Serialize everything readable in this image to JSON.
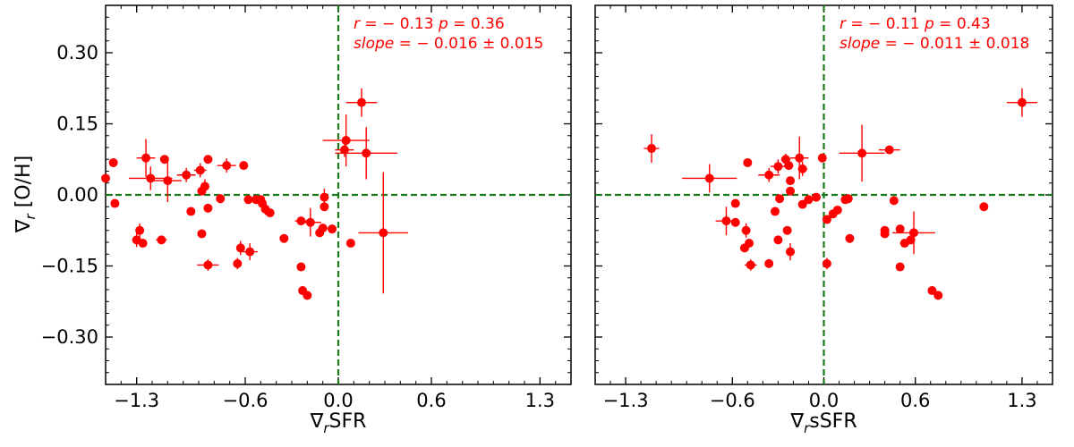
{
  "figure": {
    "ylabel_symbol": "∇",
    "ylabel_sub": "r",
    "ylabel_text": " [O/H]"
  },
  "colors": {
    "marker": "#ff0000",
    "reference_line": "#1a7a1a",
    "axis": "#000000"
  },
  "chart_data": [
    {
      "type": "scatter",
      "xlabel_symbol": "∇",
      "xlabel_sub": "r",
      "xlabel_text": "SFR",
      "xlim": [
        -1.5,
        1.5
      ],
      "ylim": [
        -0.4,
        0.4
      ],
      "xticks": [
        -1.3,
        -0.6,
        0.0,
        0.6,
        1.3
      ],
      "xtick_labels": [
        "−1.3",
        "−0.6",
        "0.0",
        "0.6",
        "1.3"
      ],
      "yticks": [
        0.3,
        0.15,
        0.0,
        -0.15,
        -0.3
      ],
      "ytick_labels": [
        "0.30",
        "0.15",
        "0.00",
        "−0.15",
        "−0.30"
      ],
      "annotation": {
        "r_label": "r",
        "r_value": " = − 0.13",
        "p_label": "p",
        "p_value": " = 0.36",
        "slope_label": "slope",
        "slope_value": " = − 0.016 ± 0.015"
      },
      "points": [
        {
          "x": -1.5,
          "y": 0.035,
          "xerr": 0,
          "yerr": 0
        },
        {
          "x": -1.45,
          "y": 0.068,
          "xerr": 0,
          "yerr": 0
        },
        {
          "x": -1.44,
          "y": -0.018,
          "xerr": 0,
          "yerr": 0
        },
        {
          "x": -1.24,
          "y": 0.078,
          "xerr": 0.06,
          "yerr": 0.04
        },
        {
          "x": -1.21,
          "y": 0.035,
          "xerr": 0.14,
          "yerr": 0.025
        },
        {
          "x": -1.1,
          "y": 0.03,
          "xerr": 0.09,
          "yerr": 0.045
        },
        {
          "x": -1.12,
          "y": 0.075,
          "xerr": 0,
          "yerr": 0
        },
        {
          "x": -0.98,
          "y": 0.042,
          "xerr": 0.06,
          "yerr": 0.015
        },
        {
          "x": -0.89,
          "y": 0.052,
          "xerr": 0.04,
          "yerr": 0.015
        },
        {
          "x": -0.84,
          "y": 0.075,
          "xerr": 0.025,
          "yerr": 0.008
        },
        {
          "x": -0.72,
          "y": 0.062,
          "xerr": 0.06,
          "yerr": 0.015
        },
        {
          "x": -0.61,
          "y": 0.062,
          "xerr": 0,
          "yerr": 0
        },
        {
          "x": -0.86,
          "y": 0.018,
          "xerr": 0.02,
          "yerr": 0.015
        },
        {
          "x": -0.88,
          "y": 0.008,
          "xerr": 0,
          "yerr": 0
        },
        {
          "x": -0.76,
          "y": -0.008,
          "xerr": 0,
          "yerr": 0
        },
        {
          "x": -0.84,
          "y": -0.028,
          "xerr": 0,
          "yerr": 0
        },
        {
          "x": -0.95,
          "y": -0.035,
          "xerr": 0,
          "yerr": 0
        },
        {
          "x": -0.58,
          "y": -0.01,
          "xerr": 0,
          "yerr": 0
        },
        {
          "x": -0.53,
          "y": -0.01,
          "xerr": 0.02,
          "yerr": 0
        },
        {
          "x": -0.5,
          "y": -0.01,
          "xerr": 0,
          "yerr": 0
        },
        {
          "x": -0.49,
          "y": -0.018,
          "xerr": 0,
          "yerr": 0
        },
        {
          "x": -0.47,
          "y": -0.03,
          "xerr": 0.02,
          "yerr": 0.012
        },
        {
          "x": -0.44,
          "y": -0.038,
          "xerr": 0,
          "yerr": 0
        },
        {
          "x": -0.35,
          "y": -0.092,
          "xerr": 0,
          "yerr": 0
        },
        {
          "x": -0.88,
          "y": -0.082,
          "xerr": 0,
          "yerr": 0
        },
        {
          "x": -1.3,
          "y": -0.095,
          "xerr": 0.03,
          "yerr": 0.015
        },
        {
          "x": -1.28,
          "y": -0.075,
          "xerr": 0,
          "yerr": 0.015
        },
        {
          "x": -1.26,
          "y": -0.102,
          "xerr": 0,
          "yerr": 0
        },
        {
          "x": -1.14,
          "y": -0.095,
          "xerr": 0.035,
          "yerr": 0
        },
        {
          "x": -0.63,
          "y": -0.112,
          "xerr": 0,
          "yerr": 0.015
        },
        {
          "x": -0.57,
          "y": -0.12,
          "xerr": 0.05,
          "yerr": 0.018
        },
        {
          "x": -0.65,
          "y": -0.145,
          "xerr": 0.025,
          "yerr": 0.012
        },
        {
          "x": -0.84,
          "y": -0.148,
          "xerr": 0.07,
          "yerr": 0.012
        },
        {
          "x": -0.24,
          "y": -0.055,
          "xerr": 0.04,
          "yerr": 0
        },
        {
          "x": -0.18,
          "y": -0.058,
          "xerr": 0.07,
          "yerr": 0.03
        },
        {
          "x": -0.12,
          "y": -0.08,
          "xerr": 0,
          "yerr": 0
        },
        {
          "x": -0.1,
          "y": -0.07,
          "xerr": 0.03,
          "yerr": 0
        },
        {
          "x": -0.04,
          "y": -0.072,
          "xerr": 0,
          "yerr": 0
        },
        {
          "x": -0.09,
          "y": -0.005,
          "xerr": 0,
          "yerr": 0.018
        },
        {
          "x": -0.09,
          "y": -0.025,
          "xerr": 0,
          "yerr": 0
        },
        {
          "x": -0.24,
          "y": -0.152,
          "xerr": 0,
          "yerr": 0
        },
        {
          "x": -0.23,
          "y": -0.202,
          "xerr": 0,
          "yerr": 0
        },
        {
          "x": -0.2,
          "y": -0.212,
          "xerr": 0,
          "yerr": 0
        },
        {
          "x": 0.05,
          "y": 0.115,
          "xerr": 0.15,
          "yerr": 0.055
        },
        {
          "x": 0.04,
          "y": 0.095,
          "xerr": 0.06,
          "yerr": 0.015
        },
        {
          "x": 0.15,
          "y": 0.195,
          "xerr": 0.1,
          "yerr": 0.03
        },
        {
          "x": 0.18,
          "y": 0.088,
          "xerr": 0.2,
          "yerr": 0.055
        },
        {
          "x": 0.08,
          "y": -0.102,
          "xerr": 0,
          "yerr": 0
        },
        {
          "x": 0.29,
          "y": -0.08,
          "xerr": 0.16,
          "yerr": 0.128
        }
      ]
    },
    {
      "type": "scatter",
      "xlabel_symbol": "∇",
      "xlabel_sub": "r",
      "xlabel_text": "sSFR",
      "xlim": [
        -1.5,
        1.5
      ],
      "ylim": [
        -0.4,
        0.4
      ],
      "xticks": [
        -1.3,
        -0.6,
        0.0,
        0.6,
        1.3
      ],
      "xtick_labels": [
        "−1.3",
        "−0.6",
        "0.0",
        "0.6",
        "1.3"
      ],
      "yticks": [
        0.3,
        0.15,
        0.0,
        -0.15,
        -0.3
      ],
      "ytick_labels": [
        "0.30",
        "0.15",
        "0.00",
        "−0.15",
        "−0.30"
      ],
      "annotation": {
        "r_label": "r",
        "r_value": " = − 0.11",
        "p_label": "p",
        "p_value": " = 0.43",
        "slope_label": "slope",
        "slope_value": " = − 0.011 ± 0.018"
      },
      "points": [
        {
          "x": -1.13,
          "y": 0.098,
          "xerr": 0.05,
          "yerr": 0.03
        },
        {
          "x": -0.75,
          "y": 0.035,
          "xerr": 0.18,
          "yerr": 0.03
        },
        {
          "x": -0.5,
          "y": 0.068,
          "xerr": 0,
          "yerr": 0
        },
        {
          "x": -0.58,
          "y": -0.018,
          "xerr": 0,
          "yerr": 0
        },
        {
          "x": -0.64,
          "y": -0.055,
          "xerr": 0.07,
          "yerr": 0.03
        },
        {
          "x": -0.58,
          "y": -0.058,
          "xerr": 0,
          "yerr": 0
        },
        {
          "x": -0.51,
          "y": -0.075,
          "xerr": 0,
          "yerr": 0.015
        },
        {
          "x": -0.52,
          "y": -0.112,
          "xerr": 0,
          "yerr": 0
        },
        {
          "x": -0.49,
          "y": -0.102,
          "xerr": 0,
          "yerr": 0
        },
        {
          "x": -0.48,
          "y": -0.148,
          "xerr": 0.04,
          "yerr": 0.012
        },
        {
          "x": -0.36,
          "y": -0.145,
          "xerr": 0,
          "yerr": 0
        },
        {
          "x": -0.36,
          "y": 0.042,
          "xerr": 0.07,
          "yerr": 0.015
        },
        {
          "x": -0.3,
          "y": 0.06,
          "xerr": 0.05,
          "yerr": 0.015
        },
        {
          "x": -0.25,
          "y": 0.075,
          "xerr": 0.03,
          "yerr": 0.012
        },
        {
          "x": -0.23,
          "y": 0.062,
          "xerr": 0.03,
          "yerr": 0
        },
        {
          "x": -0.16,
          "y": 0.078,
          "xerr": 0.06,
          "yerr": 0.045
        },
        {
          "x": -0.14,
          "y": 0.055,
          "xerr": 0.03,
          "yerr": 0.015
        },
        {
          "x": -0.22,
          "y": 0.03,
          "xerr": 0.03,
          "yerr": 0
        },
        {
          "x": -0.22,
          "y": 0.008,
          "xerr": 0,
          "yerr": 0
        },
        {
          "x": -0.29,
          "y": -0.008,
          "xerr": 0,
          "yerr": 0
        },
        {
          "x": -0.32,
          "y": -0.035,
          "xerr": 0,
          "yerr": 0
        },
        {
          "x": -0.3,
          "y": -0.095,
          "xerr": 0,
          "yerr": 0
        },
        {
          "x": -0.24,
          "y": -0.075,
          "xerr": 0,
          "yerr": 0
        },
        {
          "x": -0.22,
          "y": -0.12,
          "xerr": 0.03,
          "yerr": 0.018
        },
        {
          "x": -0.14,
          "y": -0.02,
          "xerr": 0,
          "yerr": 0
        },
        {
          "x": -0.1,
          "y": -0.01,
          "xerr": 0.03,
          "yerr": 0
        },
        {
          "x": -0.05,
          "y": -0.005,
          "xerr": 0,
          "yerr": 0
        },
        {
          "x": -0.01,
          "y": 0.078,
          "xerr": 0,
          "yerr": 0
        },
        {
          "x": 0.02,
          "y": -0.052,
          "xerr": 0,
          "yerr": 0
        },
        {
          "x": 0.06,
          "y": -0.04,
          "xerr": 0,
          "yerr": 0
        },
        {
          "x": 0.09,
          "y": -0.032,
          "xerr": 0,
          "yerr": 0
        },
        {
          "x": 0.14,
          "y": -0.01,
          "xerr": 0,
          "yerr": 0
        },
        {
          "x": 0.16,
          "y": -0.008,
          "xerr": 0,
          "yerr": 0
        },
        {
          "x": 0.17,
          "y": -0.092,
          "xerr": 0,
          "yerr": 0
        },
        {
          "x": 0.02,
          "y": -0.145,
          "xerr": 0,
          "yerr": 0.012
        },
        {
          "x": 0.25,
          "y": 0.088,
          "xerr": 0.15,
          "yerr": 0.06
        },
        {
          "x": 0.43,
          "y": 0.095,
          "xerr": 0.07,
          "yerr": 0
        },
        {
          "x": 0.4,
          "y": -0.075,
          "xerr": 0,
          "yerr": 0
        },
        {
          "x": 0.4,
          "y": -0.082,
          "xerr": 0,
          "yerr": 0
        },
        {
          "x": 0.46,
          "y": -0.012,
          "xerr": 0,
          "yerr": 0
        },
        {
          "x": 0.5,
          "y": -0.072,
          "xerr": 0,
          "yerr": 0
        },
        {
          "x": 0.53,
          "y": -0.102,
          "xerr": 0.03,
          "yerr": 0
        },
        {
          "x": 0.57,
          "y": -0.095,
          "xerr": 0,
          "yerr": 0
        },
        {
          "x": 0.59,
          "y": -0.08,
          "xerr": 0.14,
          "yerr": 0.045
        },
        {
          "x": 0.5,
          "y": -0.152,
          "xerr": 0,
          "yerr": 0
        },
        {
          "x": 0.71,
          "y": -0.202,
          "xerr": 0,
          "yerr": 0
        },
        {
          "x": 0.75,
          "y": -0.212,
          "xerr": 0,
          "yerr": 0
        },
        {
          "x": 1.05,
          "y": -0.025,
          "xerr": 0,
          "yerr": 0
        },
        {
          "x": 1.3,
          "y": 0.195,
          "xerr": 0.1,
          "yerr": 0.03
        }
      ]
    }
  ]
}
